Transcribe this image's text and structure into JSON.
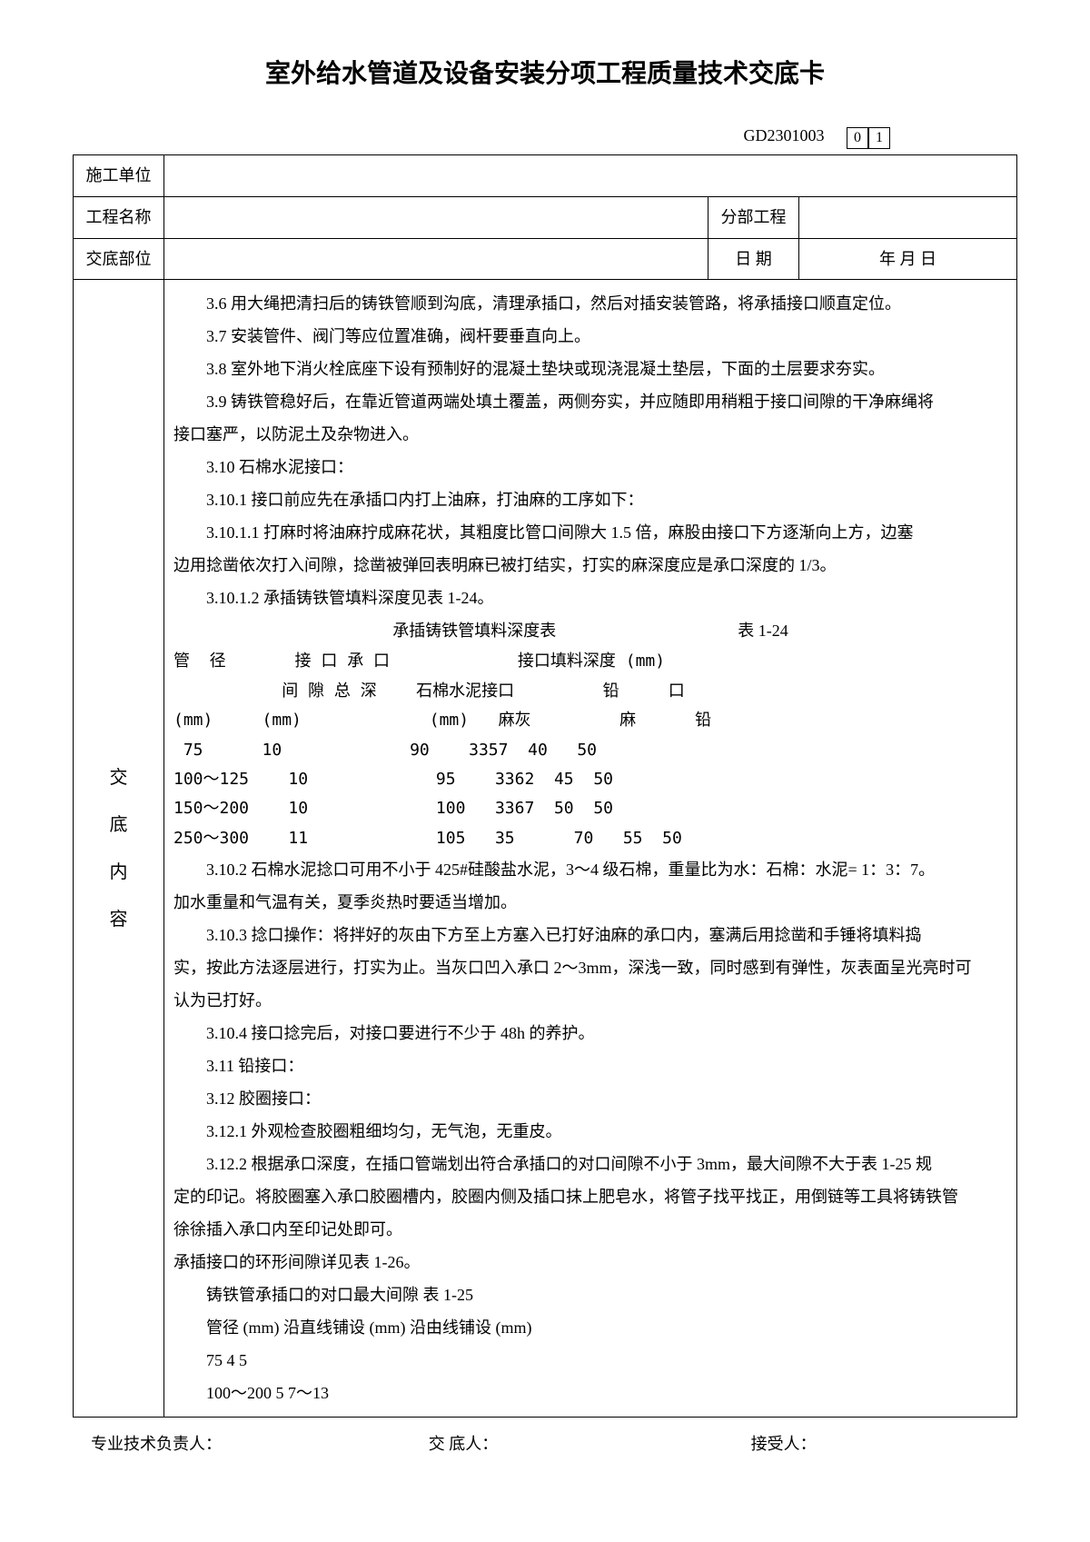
{
  "title": "室外给水管道及设备安装分项工程质量技术交底卡",
  "doc_code": "GD2301003",
  "page_boxes": [
    "0",
    "1"
  ],
  "header": {
    "unit_label": "施工单位",
    "unit_value": "",
    "project_label": "工程名称",
    "project_value": "",
    "subproject_label": "分部工程",
    "subproject_value": "",
    "position_label": "交底部位",
    "position_value": "",
    "date_label": "日 期",
    "date_value": "年 月 日"
  },
  "sidebar_chars": [
    "交",
    "底",
    "内",
    "容"
  ],
  "content": {
    "lines": [
      {
        "cls": "indent1",
        "text": "3.6  用大绳把清扫后的铸铁管顺到沟底，清理承插口，然后对插安装管路，将承插接口顺直定位。"
      },
      {
        "cls": "indent1",
        "text": "3.7  安装管件、阀门等应位置准确，阀杆要垂直向上。"
      },
      {
        "cls": "indent1",
        "text": "3.8  室外地下消火栓底座下设有预制好的混凝土垫块或现浇混凝土垫层，下面的土层要求夯实。"
      },
      {
        "cls": "indent1",
        "text": "3.9  铸铁管稳好后，在靠近管道两端处填土覆盖，两侧夯实，并应随即用稍粗于接口间隙的干净麻绳将"
      },
      {
        "cls": "",
        "text": "接口塞严，以防泥土及杂物进入。"
      },
      {
        "cls": "indent1",
        "text": "3.10  石棉水泥接口："
      },
      {
        "cls": "indent1",
        "text": "3.10.1  接口前应先在承插口内打上油麻，打油麻的工序如下："
      },
      {
        "cls": "indent1",
        "text": "3.10.1.1  打麻时将油麻拧成麻花状，其粗度比管口间隙大 1.5 倍，麻股由接口下方逐渐向上方，边塞"
      },
      {
        "cls": "",
        "text": "边用捻凿依次打入间隙，捻凿被弹回表明麻已被打结实，打实的麻深度应是承口深度的 1/3。"
      },
      {
        "cls": "indent1",
        "text": "3.10.1.2  承插铸铁管填料深度见表 1-24。"
      }
    ],
    "table1_title": "承插铸铁管填料深度表",
    "table1_ref": "表 1-24",
    "table1_header1": "管  径       接 口 承 口             接口填料深度 (mm)",
    "table1_header2": "           间 隙 总 深    石棉水泥接口         铅     口",
    "table1_header3": "(mm)     (mm)             (mm)   麻灰         麻      铅",
    "table1_rows": [
      " 75      10             90    3357  40   50",
      "100～125    10             95    3362  45  50",
      "150～200    10             100   3367  50  50",
      "250～300    11             105   35      70   55  50"
    ],
    "lines2": [
      {
        "cls": "indent1",
        "text": "3.10.2  石棉水泥捻口可用不小于 425#硅酸盐水泥，3～4 级石棉，重量比为水：石棉：水泥= 1：3：7。"
      },
      {
        "cls": "",
        "text": "加水重量和气温有关，夏季炎热时要适当增加。"
      },
      {
        "cls": "indent1",
        "text": "3.10.3  捻口操作：将拌好的灰由下方至上方塞入已打好油麻的承口内，塞满后用捻凿和手锤将填料捣"
      },
      {
        "cls": "",
        "text": "实，按此方法逐层进行，打实为止。当灰口凹入承口 2～3mm，深浅一致，同时感到有弹性，灰表面呈光亮时可"
      },
      {
        "cls": "",
        "text": "认为已打好。"
      },
      {
        "cls": "indent1",
        "text": "3.10.4  接口捻完后，对接口要进行不少于 48h 的养护。"
      },
      {
        "cls": "indent1",
        "text": "3.11  铅接口："
      },
      {
        "cls": "indent1",
        "text": "3.12  胶圈接口："
      },
      {
        "cls": "indent1",
        "text": "3.12.1  外观检查胶圈粗细均匀，无气泡，无重皮。"
      },
      {
        "cls": "indent1",
        "text": "3.12.2  根据承口深度，在插口管端划出符合承插口的对口间隙不小于 3mm，最大间隙不大于表 1-25 规"
      },
      {
        "cls": "",
        "text": "定的印记。将胶圈塞入承口胶圈槽内，胶圈内侧及插口抹上肥皂水，将管子找平找正，用倒链等工具将铸铁管"
      },
      {
        "cls": "",
        "text": "徐徐插入承口内至印记处即可。"
      },
      {
        "cls": "",
        "text": "承插接口的环形间隙详见表 1-26。"
      }
    ],
    "table2_title": "铸铁管承插口的对口最大间隙                  表 1-25",
    "table2_header": "管径 (mm) 沿直线铺设 (mm)  沿由线铺设 (mm)",
    "table2_rows": [
      "75              4                5",
      "  100～200          5                 7～13"
    ]
  },
  "footer": {
    "tech_lead": "专业技术负责人：",
    "disclose": "交 底人：",
    "receiver": "接受人："
  }
}
